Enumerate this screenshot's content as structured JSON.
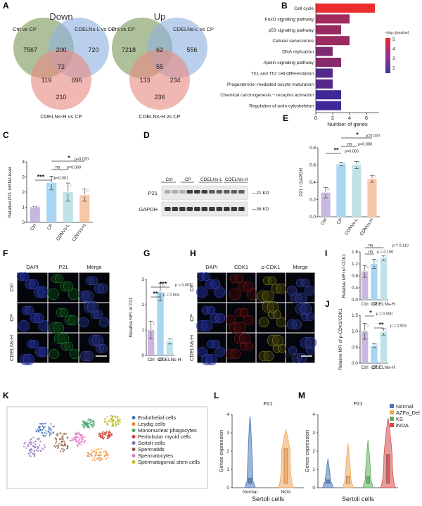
{
  "chart_data": [
    {
      "id": "A",
      "type": "venn",
      "panel_label": "A",
      "venns": [
        {
          "title": "Down",
          "sets": [
            "Ctrl vs CP",
            "CDELNs-L vs CP",
            "CDELNs-H vs CP"
          ],
          "regions": {
            "a_only": "7567",
            "b_only": "720",
            "c_only": "210",
            "ab": "200",
            "ac": "119",
            "bc": "696",
            "abc": "72"
          },
          "colors": [
            "#7d9a5a",
            "#8fb2df",
            "#e98a83"
          ]
        },
        {
          "title": "Up",
          "sets": [
            "Ctrl vs CP",
            "CDELNs-L vs CP",
            "CDELNs-H vs CP"
          ],
          "regions": {
            "a_only": "7218",
            "b_only": "556",
            "c_only": "236",
            "ab": "62",
            "ac": "133",
            "bc": "234",
            "abc": "55"
          },
          "colors": [
            "#7d9a5a",
            "#8fb2df",
            "#e98a83"
          ]
        }
      ]
    },
    {
      "id": "B",
      "type": "bar",
      "orientation": "horizontal",
      "panel_label": "B",
      "categories": [
        "Cell cycle",
        "FoxO signaling pathway",
        "p53 signaling pathway",
        "Cellular senescence",
        "DNA replication",
        "Apelin signaling pathway",
        "Th1 and Th2 cell differentiation",
        "Progesterone−mediated oocyte maturation",
        "Chemical carcinogenesis − receptor activation",
        "Regulation of actin cytoskeleton"
      ],
      "values": [
        7,
        4,
        3,
        4,
        2,
        3,
        2,
        2,
        3,
        3
      ],
      "color_values": [
        5,
        3.5,
        3.3,
        3.4,
        2.8,
        3,
        2,
        2,
        1.6,
        1.6
      ],
      "xlabel": "Number of genes",
      "xlim": [
        0,
        7.5
      ],
      "xticks": [
        "0",
        "2",
        "4",
        "6"
      ],
      "legend_title": "−log₁₀(pvalue)",
      "legend_ticks": [
        "5",
        "4",
        "3",
        "2"
      ]
    },
    {
      "id": "C",
      "type": "bar",
      "panel_label": "C",
      "categories": [
        "Ctrl",
        "CP",
        "CDNVs-L",
        "CDNVs-H"
      ],
      "values": [
        1.0,
        2.6,
        2.0,
        1.8
      ],
      "errors": [
        0.05,
        0.45,
        0.6,
        0.4
      ],
      "colors": [
        "#c8b7de",
        "#a8d6f0",
        "#bfe2e8",
        "#f6c7a8"
      ],
      "ylabel": "Relative P21 mRNA level",
      "ylim": [
        0,
        4
      ],
      "yticks": [
        "0",
        "1",
        "2",
        "3",
        "4"
      ],
      "significance": [
        {
          "label": "***",
          "p": "p<0.001"
        },
        {
          "label": "ns",
          "p": "p=0.090"
        },
        {
          "label": "*",
          "p": "p=0.020"
        }
      ]
    },
    {
      "id": "D",
      "type": "blot",
      "panel_label": "D",
      "lanes": [
        "Ctrl",
        "CP",
        "CDELNs-L",
        "CDELNs-H"
      ],
      "rows": [
        "P21",
        "GAPDH"
      ],
      "markers": [
        "21 KD",
        "36 KD"
      ]
    },
    {
      "id": "E",
      "type": "bar",
      "panel_label": "E",
      "categories": [
        "Ctrl",
        "CP",
        "CDNVs-L",
        "CDNVs-H"
      ],
      "values": [
        0.28,
        0.61,
        0.6,
        0.44
      ],
      "errors": [
        0.06,
        0.02,
        0.04,
        0.04
      ],
      "colors": [
        "#c8b7de",
        "#a8d6f0",
        "#bfe2e8",
        "#f6c7a8"
      ],
      "ylabel": "P21 / GAPDH",
      "ylim": [
        0,
        0.8
      ],
      "yticks": [
        "0.0",
        "0.2",
        "0.4",
        "0.6",
        "0.8"
      ],
      "significance": [
        {
          "label": "**",
          "p": "p=0.005"
        },
        {
          "label": "ns",
          "p": "p=0.880"
        },
        {
          "label": "*",
          "p": "p=0.020"
        }
      ]
    },
    {
      "id": "F",
      "type": "micrograph_grid",
      "panel_label": "F",
      "columns": [
        "DAPI",
        "P21",
        "Merge"
      ],
      "rows": [
        "Ctrl",
        "CP",
        "CDELNs-H"
      ],
      "scale_bar": "100 μm"
    },
    {
      "id": "G",
      "type": "bar",
      "panel_label": "G",
      "categories": [
        "Ctrl",
        "CP",
        "CDELNs-H"
      ],
      "values": [
        1.0,
        2.5,
        0.55
      ],
      "errors": [
        0.35,
        0.35,
        0.1
      ],
      "colors": [
        "#c8b7de",
        "#a8d6f0",
        "#bfe2e8"
      ],
      "ylabel": "Relative MFI of P21",
      "ylim": [
        0,
        3
      ],
      "yticks": [
        "0",
        "1",
        "2",
        "3"
      ],
      "significance": [
        {
          "label": "**",
          "p": "p = 0.004"
        },
        {
          "label": "***",
          "p": "p < 0.001"
        }
      ]
    },
    {
      "id": "H",
      "type": "micrograph_grid",
      "panel_label": "H",
      "columns": [
        "DAPI",
        "CDK1",
        "p-CDK1",
        "Merge"
      ],
      "rows": [
        "Ctrl",
        "CP",
        "CDELNs-H"
      ],
      "scale_bar": "100 μm"
    },
    {
      "id": "I",
      "type": "bar",
      "panel_label": "I",
      "categories": [
        "Ctrl",
        "CP",
        "CDELNs-H"
      ],
      "values": [
        0.95,
        1.2,
        1.4
      ],
      "errors": [
        0.2,
        0.15,
        0.08
      ],
      "colors": [
        "#c8b7de",
        "#a8d6f0",
        "#bfe2e8"
      ],
      "ylabel": "Relative MFI of CDK1",
      "ylim": [
        0,
        1.6
      ],
      "yticks": [
        "0.0",
        "0.4",
        "0.8",
        "1.2",
        "1.6"
      ],
      "significance": [
        {
          "label": "ns",
          "p": "p = 0.160"
        },
        {
          "label": "ns",
          "p": "p = 0.110"
        }
      ]
    },
    {
      "id": "J",
      "type": "bar",
      "panel_label": "J",
      "categories": [
        "Ctrl",
        "CP",
        "CDELNs-H"
      ],
      "values": [
        1.0,
        0.55,
        0.98
      ],
      "errors": [
        0.25,
        0.06,
        0.1
      ],
      "colors": [
        "#c8b7de",
        "#a8d6f0",
        "#bfe2e8"
      ],
      "ylabel": "Relative MFI of p-CDK1/CDK1",
      "ylim": [
        0,
        1.5
      ],
      "yticks": [
        "0.0",
        "0.5",
        "1.0",
        "1.5"
      ],
      "significance": [
        {
          "label": "*",
          "p": "p = 0.050"
        },
        {
          "label": "**",
          "p": "p = 0.003"
        }
      ]
    },
    {
      "id": "K",
      "type": "scatter",
      "panel_label": "K",
      "subtype": "umap",
      "legend": [
        {
          "name": "Endothelial cells",
          "color": "#3f6fb6"
        },
        {
          "name": "Leydig cells",
          "color": "#f08a2a"
        },
        {
          "name": "Mononuclear phagocytes",
          "color": "#4aa56b"
        },
        {
          "name": "Peritubular myoid cells",
          "color": "#d43f3a"
        },
        {
          "name": "Sertoli cells",
          "color": "#8e6bbf"
        },
        {
          "name": "Spermatids",
          "color": "#8c5a3c"
        },
        {
          "name": "Spermatocytes",
          "color": "#e377c2"
        },
        {
          "name": "Spermatogonial stem cells",
          "color": "#bcbd22"
        }
      ]
    },
    {
      "id": "L",
      "type": "violin",
      "panel_label": "L",
      "title": "P21",
      "categories": [
        "Normal",
        "NOA"
      ],
      "colors": [
        "#4a78b8",
        "#f0a55a"
      ],
      "ylabel": "Genes expression",
      "xlabel": "Sertoli cells",
      "ylim": [
        0,
        4
      ],
      "yticks": [
        "0",
        "1",
        "2",
        "3",
        "4"
      ],
      "extents": [
        3.9,
        3.2
      ],
      "medians": [
        0.3,
        1.9
      ]
    },
    {
      "id": "M",
      "type": "violin",
      "panel_label": "M",
      "title": "P21",
      "categories": [
        "Normal",
        "AZFa_Del",
        "KS",
        "iNOA"
      ],
      "colors": [
        "#4a78b8",
        "#f0a55a",
        "#5cae5c",
        "#d64a4a"
      ],
      "ylabel": "Genes expression",
      "xlabel": "Sertoli cells",
      "ylim": [
        0,
        4
      ],
      "yticks": [
        "0",
        "1",
        "2",
        "3",
        "4"
      ],
      "extents": [
        1.6,
        2.4,
        2.6,
        3.8
      ],
      "medians": [
        0.2,
        0.4,
        0.4,
        1.6
      ],
      "legend": [
        "Normal",
        "AZFa_Del",
        "KS",
        "iNOA"
      ]
    }
  ]
}
